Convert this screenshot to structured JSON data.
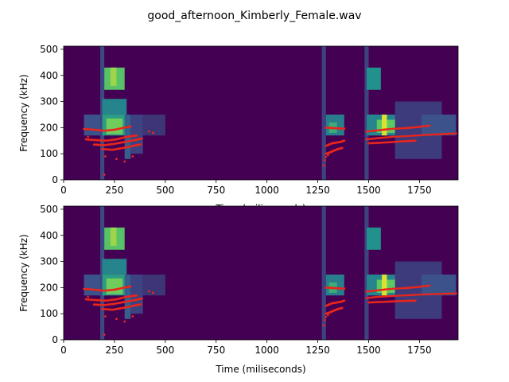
{
  "figure": {
    "title": "good_afternoon_Kimberly_Female.wav"
  },
  "chart_data": [
    {
      "type": "heatmap",
      "xlabel": "Time (miliseconds)",
      "ylabel": "Frequency (kHz)",
      "xlim": [
        0,
        1940
      ],
      "ylim": [
        0,
        512
      ],
      "xticks": [
        0,
        250,
        500,
        750,
        1000,
        1250,
        1500,
        1750
      ],
      "yticks": [
        0,
        100,
        200,
        300,
        400,
        500
      ],
      "colormap": "viridis",
      "background_color": "#440154",
      "overlay_color": "#e8261c",
      "spectrogram_cells": [
        {
          "t0": 100,
          "t1": 180,
          "f0": 170,
          "f1": 250,
          "v": 0.25
        },
        {
          "t0": 180,
          "t1": 200,
          "f0": 0,
          "f1": 512,
          "v": 0.22
        },
        {
          "t0": 190,
          "t1": 310,
          "f0": 170,
          "f1": 250,
          "v": 0.55
        },
        {
          "t0": 190,
          "t1": 310,
          "f0": 250,
          "f1": 310,
          "v": 0.45
        },
        {
          "t0": 200,
          "t1": 300,
          "f0": 345,
          "f1": 430,
          "v": 0.72
        },
        {
          "t0": 210,
          "t1": 290,
          "f0": 175,
          "f1": 235,
          "v": 0.78
        },
        {
          "t0": 230,
          "t1": 260,
          "f0": 360,
          "f1": 430,
          "v": 0.85
        },
        {
          "t0": 300,
          "t1": 330,
          "f0": 80,
          "f1": 250,
          "v": 0.3
        },
        {
          "t0": 330,
          "t1": 390,
          "f0": 100,
          "f1": 250,
          "v": 0.2
        },
        {
          "t0": 390,
          "t1": 500,
          "f0": 170,
          "f1": 250,
          "v": 0.16
        },
        {
          "t0": 1270,
          "t1": 1290,
          "f0": 0,
          "f1": 512,
          "v": 0.2
        },
        {
          "t0": 1290,
          "t1": 1380,
          "f0": 170,
          "f1": 250,
          "v": 0.42
        },
        {
          "t0": 1305,
          "t1": 1345,
          "f0": 180,
          "f1": 220,
          "v": 0.62
        },
        {
          "t0": 1480,
          "t1": 1500,
          "f0": 0,
          "f1": 512,
          "v": 0.2
        },
        {
          "t0": 1490,
          "t1": 1560,
          "f0": 345,
          "f1": 430,
          "v": 0.5
        },
        {
          "t0": 1490,
          "t1": 1760,
          "f0": 170,
          "f1": 250,
          "v": 0.45
        },
        {
          "t0": 1540,
          "t1": 1630,
          "f0": 180,
          "f1": 230,
          "v": 0.75
        },
        {
          "t0": 1565,
          "t1": 1590,
          "f0": 170,
          "f1": 250,
          "v": 0.95
        },
        {
          "t0": 1630,
          "t1": 1860,
          "f0": 80,
          "f1": 300,
          "v": 0.18
        },
        {
          "t0": 1760,
          "t1": 1930,
          "f0": 170,
          "f1": 250,
          "v": 0.25
        }
      ],
      "pitch_tracks": [
        {
          "x": [
            100,
            150,
            200,
            250,
            300,
            330
          ],
          "y": [
            195,
            192,
            188,
            192,
            200,
            205
          ]
        },
        {
          "x": [
            110,
            160,
            210,
            260,
            310,
            360
          ],
          "y": [
            155,
            152,
            150,
            155,
            165,
            170
          ]
        },
        {
          "x": [
            150,
            200,
            250,
            300,
            350,
            385
          ],
          "y": [
            135,
            133,
            138,
            145,
            152,
            158
          ]
        },
        {
          "x": [
            190,
            240,
            290,
            340,
            380
          ],
          "y": [
            118,
            115,
            122,
            130,
            136
          ]
        },
        {
          "x": [
            1290,
            1330,
            1360,
            1380
          ],
          "y": [
            200,
            198,
            197,
            196
          ]
        },
        {
          "x": [
            1290,
            1320,
            1360,
            1380
          ],
          "y": [
            130,
            140,
            145,
            150
          ]
        },
        {
          "x": [
            1290,
            1310,
            1330,
            1350,
            1370
          ],
          "y": [
            100,
            105,
            112,
            118,
            122
          ]
        },
        {
          "x": [
            1490,
            1550,
            1610,
            1680,
            1740,
            1800
          ],
          "y": [
            185,
            190,
            195,
            198,
            202,
            208
          ]
        },
        {
          "x": [
            1490,
            1550,
            1620,
            1700,
            1780,
            1860,
            1930
          ],
          "y": [
            155,
            160,
            165,
            168,
            172,
            175,
            178
          ]
        },
        {
          "x": [
            1500,
            1560,
            1620,
            1680,
            1730
          ],
          "y": [
            140,
            142,
            145,
            148,
            150
          ]
        }
      ],
      "pitch_points": [
        {
          "x": [
            120,
            200,
            205,
            260,
            300,
            340,
            420,
            440,
            1280,
            1285,
            1290,
            1300
          ],
          "y": [
            165,
            20,
            90,
            80,
            70,
            90,
            185,
            180,
            55,
            75,
            88,
            95
          ]
        }
      ]
    },
    {
      "type": "heatmap",
      "xlabel": "Time (miliseconds)",
      "ylabel": "Frequency (kHz)",
      "xlim": [
        0,
        1940
      ],
      "ylim": [
        0,
        512
      ],
      "xticks": [
        0,
        250,
        500,
        750,
        1000,
        1250,
        1500,
        1750
      ],
      "yticks": [
        0,
        100,
        200,
        300,
        400,
        500
      ],
      "colormap": "viridis",
      "background_color": "#440154",
      "overlay_color": "#e8261c",
      "spectrogram_cells": [
        {
          "t0": 100,
          "t1": 180,
          "f0": 170,
          "f1": 250,
          "v": 0.25
        },
        {
          "t0": 180,
          "t1": 200,
          "f0": 0,
          "f1": 512,
          "v": 0.22
        },
        {
          "t0": 190,
          "t1": 310,
          "f0": 170,
          "f1": 250,
          "v": 0.55
        },
        {
          "t0": 190,
          "t1": 310,
          "f0": 250,
          "f1": 310,
          "v": 0.45
        },
        {
          "t0": 200,
          "t1": 300,
          "f0": 345,
          "f1": 430,
          "v": 0.72
        },
        {
          "t0": 210,
          "t1": 290,
          "f0": 175,
          "f1": 235,
          "v": 0.78
        },
        {
          "t0": 230,
          "t1": 260,
          "f0": 360,
          "f1": 430,
          "v": 0.85
        },
        {
          "t0": 300,
          "t1": 330,
          "f0": 80,
          "f1": 250,
          "v": 0.3
        },
        {
          "t0": 330,
          "t1": 390,
          "f0": 100,
          "f1": 250,
          "v": 0.2
        },
        {
          "t0": 390,
          "t1": 500,
          "f0": 170,
          "f1": 250,
          "v": 0.16
        },
        {
          "t0": 1270,
          "t1": 1290,
          "f0": 0,
          "f1": 512,
          "v": 0.2
        },
        {
          "t0": 1290,
          "t1": 1380,
          "f0": 170,
          "f1": 250,
          "v": 0.42
        },
        {
          "t0": 1305,
          "t1": 1345,
          "f0": 180,
          "f1": 220,
          "v": 0.62
        },
        {
          "t0": 1480,
          "t1": 1500,
          "f0": 0,
          "f1": 512,
          "v": 0.2
        },
        {
          "t0": 1490,
          "t1": 1560,
          "f0": 345,
          "f1": 430,
          "v": 0.5
        },
        {
          "t0": 1490,
          "t1": 1760,
          "f0": 170,
          "f1": 250,
          "v": 0.45
        },
        {
          "t0": 1540,
          "t1": 1630,
          "f0": 180,
          "f1": 230,
          "v": 0.75
        },
        {
          "t0": 1565,
          "t1": 1590,
          "f0": 170,
          "f1": 250,
          "v": 0.95
        },
        {
          "t0": 1630,
          "t1": 1860,
          "f0": 80,
          "f1": 300,
          "v": 0.18
        },
        {
          "t0": 1760,
          "t1": 1930,
          "f0": 170,
          "f1": 250,
          "v": 0.25
        }
      ],
      "pitch_tracks": [
        {
          "x": [
            100,
            150,
            200,
            250,
            300,
            330
          ],
          "y": [
            195,
            192,
            188,
            192,
            200,
            205
          ]
        },
        {
          "x": [
            110,
            160,
            210,
            260,
            310,
            360
          ],
          "y": [
            155,
            152,
            150,
            155,
            165,
            170
          ]
        },
        {
          "x": [
            150,
            200,
            250,
            300,
            350,
            385
          ],
          "y": [
            135,
            133,
            138,
            145,
            152,
            158
          ]
        },
        {
          "x": [
            190,
            240,
            290,
            340,
            380
          ],
          "y": [
            118,
            115,
            122,
            130,
            136
          ]
        },
        {
          "x": [
            1290,
            1330,
            1360,
            1380
          ],
          "y": [
            200,
            198,
            197,
            196
          ]
        },
        {
          "x": [
            1290,
            1320,
            1360,
            1380
          ],
          "y": [
            130,
            140,
            145,
            150
          ]
        },
        {
          "x": [
            1290,
            1310,
            1330,
            1350,
            1370
          ],
          "y": [
            100,
            105,
            112,
            118,
            122
          ]
        },
        {
          "x": [
            1490,
            1550,
            1610,
            1680,
            1740,
            1800
          ],
          "y": [
            185,
            190,
            195,
            198,
            202,
            208
          ]
        },
        {
          "x": [
            1490,
            1550,
            1620,
            1700,
            1780,
            1860,
            1930
          ],
          "y": [
            160,
            165,
            168,
            171,
            174,
            176,
            178
          ]
        },
        {
          "x": [
            1500,
            1560,
            1620,
            1680,
            1730
          ],
          "y": [
            143,
            145,
            147,
            149,
            150
          ]
        }
      ],
      "pitch_points": [
        {
          "x": [
            120,
            200,
            205,
            260,
            300,
            340,
            420,
            440,
            1280,
            1285,
            1290,
            1300
          ],
          "y": [
            165,
            20,
            90,
            80,
            70,
            90,
            185,
            180,
            55,
            75,
            88,
            95
          ]
        }
      ]
    }
  ]
}
